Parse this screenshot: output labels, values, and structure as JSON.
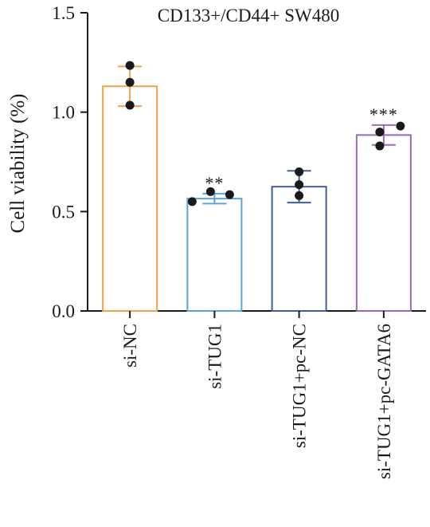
{
  "chart_data": {
    "type": "bar",
    "title": "CD133+/CD44+ SW480",
    "xlabel": "",
    "ylabel": "Cell viability (%)",
    "ylim": [
      0,
      1.5
    ],
    "yticks": [
      {
        "value": 0.0,
        "label": "0.0"
      },
      {
        "value": 0.5,
        "label": "0.5"
      },
      {
        "value": 1.0,
        "label": "1.0"
      },
      {
        "value": 1.5,
        "label": "1.5"
      }
    ],
    "categories": [
      "si-NC",
      "si-TUG1",
      "si-TUG1+pc-NC",
      "si-TUG1+pc-GATA6"
    ],
    "values": [
      1.13,
      0.565,
      0.625,
      0.885
    ],
    "errors": [
      0.1,
      0.025,
      0.08,
      0.05
    ],
    "points": [
      [
        1.235,
        1.15,
        1.035
      ],
      [
        0.55,
        0.6,
        0.585
      ],
      [
        0.7,
        0.635,
        0.58
      ],
      [
        0.9,
        0.93,
        0.83
      ]
    ],
    "colors": [
      "#F4A14F",
      "#5BA4D6",
      "#3E5CA8",
      "#9A6BB5"
    ],
    "significance": [
      "",
      "**",
      "",
      "***"
    ],
    "grid": false,
    "legend": "none"
  }
}
